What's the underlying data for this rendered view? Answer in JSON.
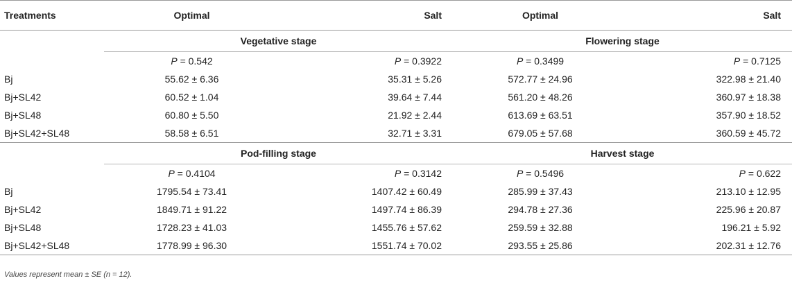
{
  "header": {
    "col0": "Treatments",
    "col1": "Optimal",
    "col2": "Salt",
    "col3": "Optimal",
    "col4": "Salt"
  },
  "section1": {
    "stage_left": "Vegetative stage",
    "stage_right": "Flowering stage",
    "p_label": "P",
    "p_values": [
      "= 0.542",
      "= 0.3922",
      "= 0.3499",
      "= 0.7125"
    ],
    "rows": [
      {
        "treatment": "Bj",
        "values": [
          "55.62 ± 6.36",
          "35.31 ± 5.26",
          "572.77 ± 24.96",
          "322.98 ± 21.40"
        ]
      },
      {
        "treatment": "Bj+SL42",
        "values": [
          "60.52 ± 1.04",
          "39.64 ± 7.44",
          "561.20 ± 48.26",
          "360.97 ± 18.38"
        ]
      },
      {
        "treatment": "Bj+SL48",
        "values": [
          "60.80 ± 5.50",
          "21.92 ± 2.44",
          "613.69 ± 63.51",
          "357.90 ± 18.52"
        ]
      },
      {
        "treatment": "Bj+SL42+SL48",
        "values": [
          "58.58 ± 6.51",
          "32.71 ± 3.31",
          "679.05 ± 57.68",
          "360.59 ± 45.72"
        ]
      }
    ]
  },
  "section2": {
    "stage_left": "Pod-filling stage",
    "stage_right": "Harvest stage",
    "p_label": "P",
    "p_values": [
      "= 0.4104",
      "= 0.3142",
      "= 0.5496",
      "= 0.622"
    ],
    "rows": [
      {
        "treatment": "Bj",
        "values": [
          "1795.54 ± 73.41",
          "1407.42 ± 60.49",
          "285.99 ± 37.43",
          "213.10 ± 12.95"
        ]
      },
      {
        "treatment": "Bj+SL42",
        "values": [
          "1849.71 ± 91.22",
          "1497.74 ± 86.39",
          "294.78 ± 27.36",
          "225.96 ± 20.87"
        ]
      },
      {
        "treatment": "Bj+SL48",
        "values": [
          "1728.23 ± 41.03",
          "1455.76 ± 57.62",
          "259.59 ± 32.88",
          "196.21 ± 5.92"
        ]
      },
      {
        "treatment": "Bj+SL42+SL48",
        "values": [
          "1778.99 ± 96.30",
          "1551.74 ± 70.02",
          "293.55 ± 25.86",
          "202.31 ± 12.76"
        ]
      }
    ]
  },
  "footnote": "Values represent mean ± SE (n = 12)."
}
